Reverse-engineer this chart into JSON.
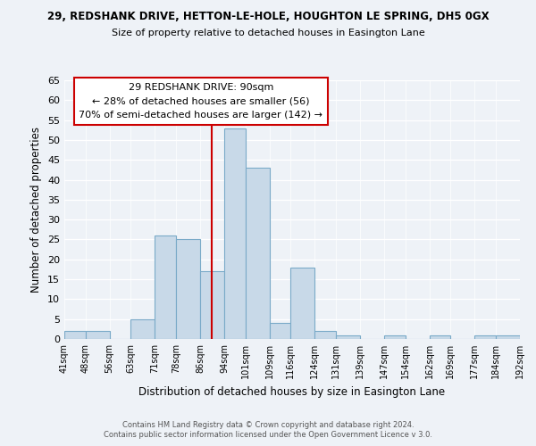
{
  "title1": "29, REDSHANK DRIVE, HETTON-LE-HOLE, HOUGHTON LE SPRING, DH5 0GX",
  "title2": "Size of property relative to detached houses in Easington Lane",
  "xlabel": "Distribution of detached houses by size in Easington Lane",
  "ylabel": "Number of detached properties",
  "bin_edges": [
    41,
    48,
    56,
    63,
    71,
    78,
    86,
    94,
    101,
    109,
    116,
    124,
    131,
    139,
    147,
    154,
    162,
    169,
    177,
    184,
    192
  ],
  "counts": [
    2,
    2,
    0,
    5,
    26,
    25,
    17,
    53,
    43,
    4,
    18,
    2,
    1,
    0,
    1,
    0,
    1,
    0,
    1,
    1
  ],
  "bar_color": "#c8d9e8",
  "bar_edge_color": "#7aaac8",
  "vline_color": "#cc0000",
  "vline_x": 90,
  "annotation_line1": "29 REDSHANK DRIVE: 90sqm",
  "annotation_line2": "← 28% of detached houses are smaller (56)",
  "annotation_line3": "70% of semi-detached houses are larger (142) →",
  "ylim": [
    0,
    65
  ],
  "yticks": [
    0,
    5,
    10,
    15,
    20,
    25,
    30,
    35,
    40,
    45,
    50,
    55,
    60,
    65
  ],
  "tick_labels": [
    "41sqm",
    "48sqm",
    "56sqm",
    "63sqm",
    "71sqm",
    "78sqm",
    "86sqm",
    "94sqm",
    "101sqm",
    "109sqm",
    "116sqm",
    "124sqm",
    "131sqm",
    "139sqm",
    "147sqm",
    "154sqm",
    "162sqm",
    "169sqm",
    "177sqm",
    "184sqm",
    "192sqm"
  ],
  "footer1": "Contains HM Land Registry data © Crown copyright and database right 2024.",
  "footer2": "Contains public sector information licensed under the Open Government Licence v 3.0.",
  "bg_color": "#eef2f7"
}
